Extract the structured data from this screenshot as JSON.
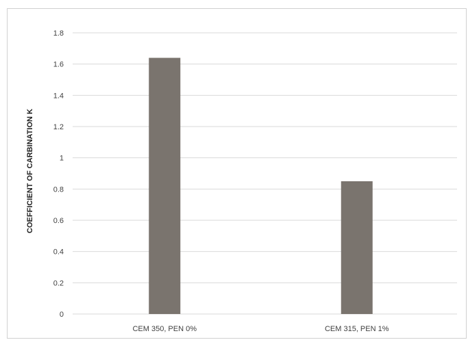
{
  "chart_data": {
    "type": "bar",
    "title": "",
    "xlabel": "",
    "ylabel": "COEFFICIENT OF CARBINATION K",
    "categories": [
      "CEM 350, PEN 0%",
      "CEM 315, PEN 1%"
    ],
    "values": [
      1.64,
      0.85
    ],
    "ylim": [
      0,
      1.8
    ],
    "yticks": [
      "0",
      "0.2",
      "0.4",
      "0.6",
      "0.8",
      "1",
      "1.2",
      "1.4",
      "1.6",
      "1.8"
    ],
    "grid": true,
    "legend": "none",
    "bar_color": "#7a746e",
    "grid_color": "#d9d9d9"
  }
}
